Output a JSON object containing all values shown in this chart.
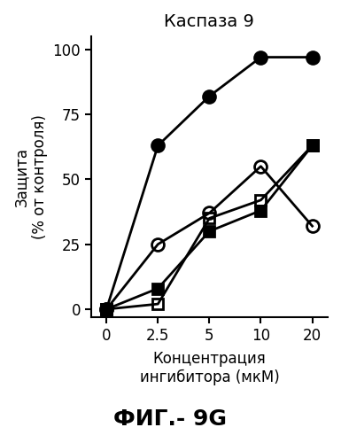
{
  "title": "Каспаза 9",
  "xlabel_line1": "Концентрация",
  "xlabel_line2": "ингибитора (мкМ)",
  "ylabel_lines": [
    "Защита",
    "от контроля",
    "(% "
  ],
  "ylabel_full": "Защита\n от контроля\n(%",
  "x_positions": [
    0,
    1,
    2,
    3,
    4
  ],
  "x_labels": [
    "0",
    "2.5",
    "5",
    "10",
    "20"
  ],
  "series": [
    {
      "label": "filled_circle",
      "y": [
        0,
        63,
        82,
        97,
        97
      ],
      "marker": "o",
      "fillstyle": "full",
      "color": "black",
      "markersize": 10,
      "linewidth": 2.0
    },
    {
      "label": "open_circle",
      "y": [
        0,
        25,
        37,
        55,
        32
      ],
      "marker": "o",
      "fillstyle": "none",
      "color": "black",
      "markersize": 10,
      "linewidth": 2.0
    },
    {
      "label": "filled_square",
      "y": [
        0,
        8,
        30,
        38,
        63
      ],
      "marker": "s",
      "fillstyle": "full",
      "color": "black",
      "markersize": 9,
      "linewidth": 2.0
    },
    {
      "label": "open_square",
      "y": [
        0,
        2,
        35,
        42,
        63
      ],
      "marker": "s",
      "fillstyle": "none",
      "color": "black",
      "markersize": 9,
      "linewidth": 2.0
    }
  ],
  "xlim": [
    -0.3,
    4.3
  ],
  "ylim": [
    -3,
    105
  ],
  "yticks": [
    0,
    25,
    50,
    75,
    100
  ],
  "fig_label": "ФИГ.- 9G",
  "background_color": "#ffffff",
  "title_fontsize": 14,
  "tick_fontsize": 12,
  "xlabel_fontsize": 12,
  "ylabel_fontsize": 12,
  "figlabel_fontsize": 18
}
